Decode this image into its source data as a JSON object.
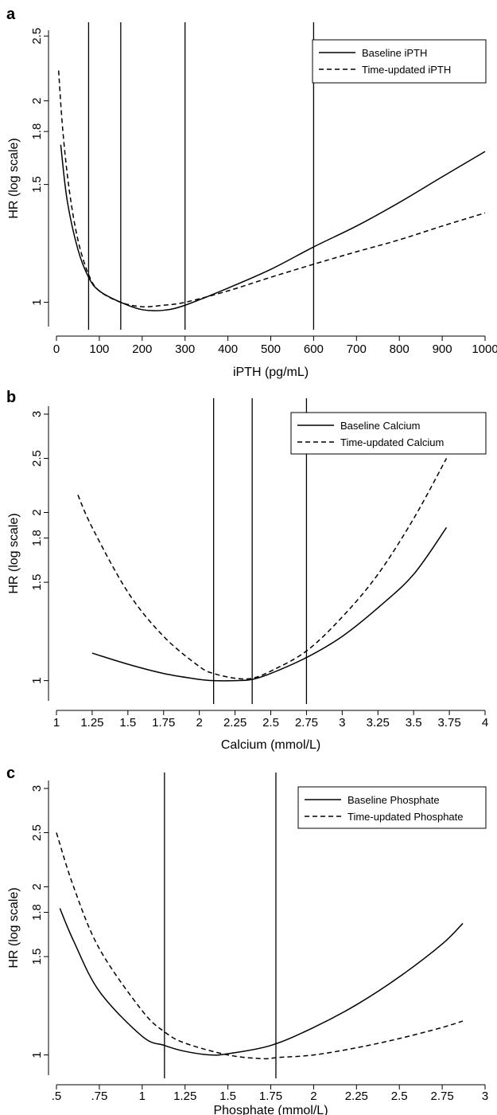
{
  "chart_data": [
    {
      "type": "line",
      "panel": "a",
      "xlabel": "iPTH (pg/mL)",
      "ylabel": "HR (log scale)",
      "y_scale": "log",
      "xlim": [
        0,
        1000
      ],
      "ylim": [
        0.92,
        2.55
      ],
      "x_ticks": [
        0,
        100,
        200,
        300,
        400,
        500,
        600,
        700,
        800,
        900,
        1000
      ],
      "x_tick_labels": [
        "0",
        "100",
        "200",
        "300",
        "400",
        "500",
        "600",
        "700",
        "800",
        "900",
        "1000"
      ],
      "y_ticks": [
        1,
        1.5,
        1.8,
        2,
        2.5
      ],
      "y_tick_labels": [
        "1",
        "1.5",
        "1.8",
        "2",
        "2.5"
      ],
      "reference_lines_x": [
        75,
        150,
        300,
        600
      ],
      "legend_position": "top-right",
      "series": [
        {
          "name": "Baseline iPTH",
          "style": "solid",
          "points": [
            [
              10,
              1.72
            ],
            [
              25,
              1.42
            ],
            [
              50,
              1.2
            ],
            [
              75,
              1.09
            ],
            [
              100,
              1.04
            ],
            [
              150,
              1.0
            ],
            [
              200,
              0.975
            ],
            [
              250,
              0.973
            ],
            [
              300,
              0.99
            ],
            [
              400,
              1.05
            ],
            [
              500,
              1.12
            ],
            [
              600,
              1.21
            ],
            [
              700,
              1.3
            ],
            [
              800,
              1.41
            ],
            [
              900,
              1.54
            ],
            [
              1000,
              1.68
            ]
          ]
        },
        {
          "name": "Time-updated iPTH",
          "style": "dashed",
          "points": [
            [
              5,
              2.22
            ],
            [
              15,
              1.8
            ],
            [
              30,
              1.47
            ],
            [
              50,
              1.24
            ],
            [
              75,
              1.1
            ],
            [
              100,
              1.04
            ],
            [
              150,
              1.0
            ],
            [
              200,
              0.985
            ],
            [
              250,
              0.99
            ],
            [
              300,
              1.0
            ],
            [
              400,
              1.04
            ],
            [
              500,
              1.09
            ],
            [
              600,
              1.14
            ],
            [
              700,
              1.19
            ],
            [
              800,
              1.24
            ],
            [
              900,
              1.3
            ],
            [
              1000,
              1.36
            ]
          ]
        }
      ]
    },
    {
      "type": "line",
      "panel": "b",
      "xlabel": "Calcium (mmol/L)",
      "ylabel": "HR (log scale)",
      "y_scale": "log",
      "xlim": [
        1,
        4
      ],
      "ylim": [
        0.92,
        3.1
      ],
      "x_ticks": [
        1,
        1.25,
        1.5,
        1.75,
        2,
        2.25,
        2.5,
        2.75,
        3,
        3.25,
        3.5,
        3.75,
        4
      ],
      "x_tick_labels": [
        "1",
        "1.25",
        "1.5",
        "1.75",
        "2",
        "2.25",
        "2.5",
        "2.75",
        "3",
        "3.25",
        "3.5",
        "3.75",
        "4"
      ],
      "y_ticks": [
        1,
        1.5,
        1.8,
        2,
        2.5,
        3
      ],
      "y_tick_labels": [
        "1",
        "1.5",
        "1.8",
        "2",
        "2.5",
        "3"
      ],
      "reference_lines_x": [
        2.1,
        2.37,
        2.75
      ],
      "legend_position": "top-right",
      "series": [
        {
          "name": "Baseline Calcium",
          "style": "solid",
          "points": [
            [
              1.25,
              1.12
            ],
            [
              1.5,
              1.07
            ],
            [
              1.75,
              1.03
            ],
            [
              2.0,
              1.005
            ],
            [
              2.1,
              1.0
            ],
            [
              2.25,
              1.0
            ],
            [
              2.37,
              1.005
            ],
            [
              2.5,
              1.03
            ],
            [
              2.75,
              1.1
            ],
            [
              3.0,
              1.2
            ],
            [
              3.25,
              1.35
            ],
            [
              3.5,
              1.55
            ],
            [
              3.73,
              1.88
            ]
          ]
        },
        {
          "name": "Time-updated Calcium",
          "style": "dashed",
          "points": [
            [
              1.15,
              2.15
            ],
            [
              1.25,
              1.88
            ],
            [
              1.5,
              1.44
            ],
            [
              1.75,
              1.2
            ],
            [
              2.0,
              1.06
            ],
            [
              2.1,
              1.03
            ],
            [
              2.25,
              1.01
            ],
            [
              2.37,
              1.01
            ],
            [
              2.5,
              1.04
            ],
            [
              2.75,
              1.13
            ],
            [
              3.0,
              1.3
            ],
            [
              3.25,
              1.55
            ],
            [
              3.5,
              1.95
            ],
            [
              3.73,
              2.5
            ]
          ]
        }
      ]
    },
    {
      "type": "line",
      "panel": "c",
      "xlabel": "Phosphate (mmol/L)",
      "ylabel": "HR (log scale)",
      "y_scale": "log",
      "xlim": [
        0.5,
        3
      ],
      "ylim": [
        0.92,
        3.1
      ],
      "x_ticks": [
        0.5,
        0.75,
        1,
        1.25,
        1.5,
        1.75,
        2,
        2.25,
        2.5,
        2.75,
        3
      ],
      "x_tick_labels": [
        ".5",
        ".75",
        "1",
        "1.25",
        "1.5",
        "1.75",
        "2",
        "2.25",
        "2.5",
        "2.75",
        "3"
      ],
      "y_ticks": [
        1,
        1.5,
        1.8,
        2,
        2.5,
        3
      ],
      "y_tick_labels": [
        "1",
        "1.5",
        "1.8",
        "2",
        "2.5",
        "3"
      ],
      "reference_lines_x": [
        1.13,
        1.78
      ],
      "legend_position": "top-right",
      "series": [
        {
          "name": "Baseline Phosphate",
          "style": "solid",
          "points": [
            [
              0.52,
              1.83
            ],
            [
              0.6,
              1.6
            ],
            [
              0.75,
              1.3
            ],
            [
              1.0,
              1.08
            ],
            [
              1.13,
              1.04
            ],
            [
              1.25,
              1.015
            ],
            [
              1.4,
              1.0
            ],
            [
              1.5,
              1.005
            ],
            [
              1.75,
              1.04
            ],
            [
              2.0,
              1.12
            ],
            [
              2.25,
              1.23
            ],
            [
              2.5,
              1.38
            ],
            [
              2.75,
              1.58
            ],
            [
              2.87,
              1.72
            ]
          ]
        },
        {
          "name": "Time-updated Phosphate",
          "style": "dashed",
          "points": [
            [
              0.5,
              2.5
            ],
            [
              0.6,
              2.0
            ],
            [
              0.75,
              1.55
            ],
            [
              1.0,
              1.2
            ],
            [
              1.13,
              1.1
            ],
            [
              1.25,
              1.05
            ],
            [
              1.5,
              1.0
            ],
            [
              1.7,
              0.985
            ],
            [
              1.8,
              0.99
            ],
            [
              2.0,
              1.0
            ],
            [
              2.25,
              1.03
            ],
            [
              2.5,
              1.07
            ],
            [
              2.75,
              1.12
            ],
            [
              2.87,
              1.15
            ]
          ]
        }
      ]
    }
  ]
}
